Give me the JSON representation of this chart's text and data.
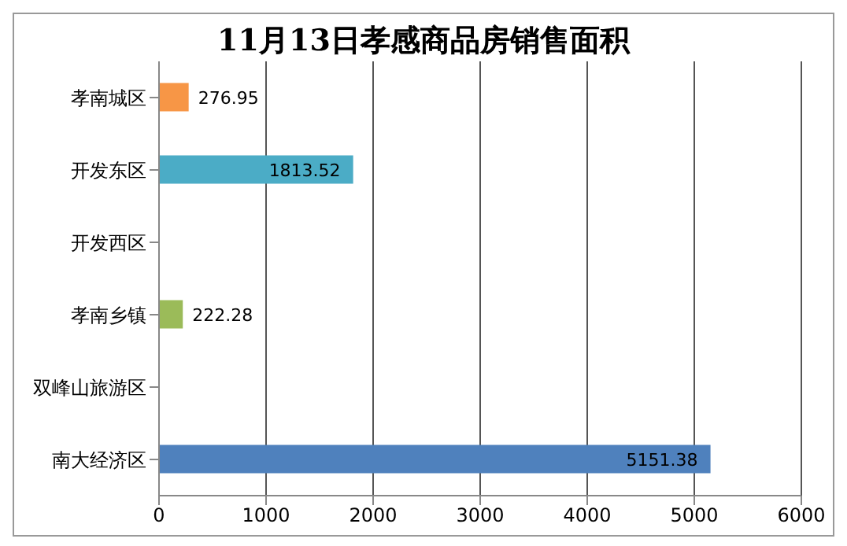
{
  "chart_data": {
    "type": "bar",
    "orientation": "horizontal",
    "title": "11月13日孝感商品房销售面积",
    "categories": [
      "孝南城区",
      "开发东区",
      "开发西区",
      "孝南乡镇",
      "双峰山旅游区",
      "南大经济区"
    ],
    "values": [
      276.95,
      1813.52,
      null,
      222.28,
      null,
      5151.38
    ],
    "colors": [
      "#f79646",
      "#4bacc6",
      null,
      "#9bbb59",
      null,
      "#4f81bd"
    ],
    "value_labels": [
      "276.95",
      "1813.52",
      null,
      "222.28",
      null,
      "5151.38"
    ],
    "xlim": [
      0,
      6000
    ],
    "xticks": [
      0,
      1000,
      2000,
      3000,
      4000,
      5000,
      6000
    ],
    "grid": "x",
    "legend": false
  }
}
